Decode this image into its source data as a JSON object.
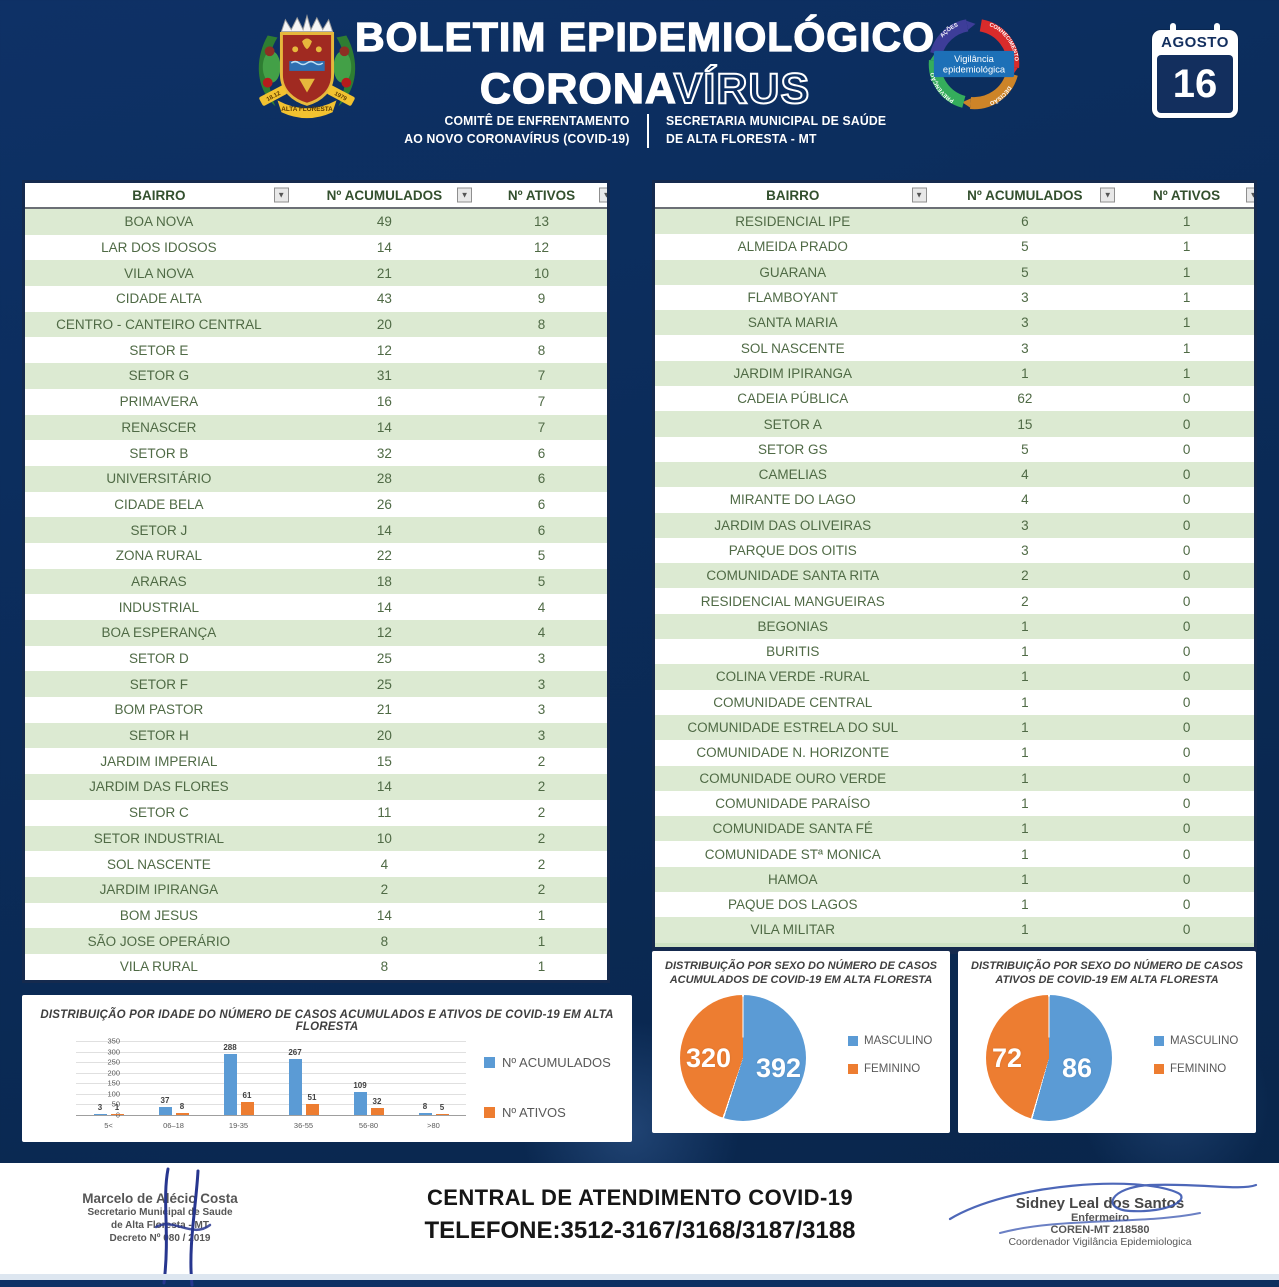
{
  "header": {
    "title_line1": "BOLETIM EPIDEMIOLÓGICO",
    "title_line2_solid": "CORONA",
    "title_line2_outline": "VÍRUS",
    "subtitle_left_line1": "COMITÊ DE ENFRENTAMENTO",
    "subtitle_left_line2": "AO NOVO CORONAVÍRUS (COVID-19)",
    "subtitle_right_line1": "SECRETARIA MUNICIPAL DE SAÚDE",
    "subtitle_right_line2": "DE ALTA FLORESTA - MT",
    "crest": {
      "ribbon_text": "ALTA FLORESTA",
      "year_left": "18.12",
      "year_right": "1979"
    },
    "vigilancia": {
      "center_line1": "Vigilância",
      "center_line2": "epidemiológica",
      "labels": [
        "CONHECIMENTO",
        "DECISÃO",
        "PREVENÇÃO",
        "AÇÕES"
      ]
    },
    "calendar": {
      "month": "AGOSTO",
      "day": "16"
    }
  },
  "tables": {
    "columns": [
      "BAIRRO",
      "Nº ACUMULADOS",
      "Nº ATIVOS"
    ],
    "left": {
      "rows": [
        [
          "BOA NOVA",
          49,
          13
        ],
        [
          "LAR DOS IDOSOS",
          14,
          12
        ],
        [
          "VILA NOVA",
          21,
          10
        ],
        [
          "CIDADE ALTA",
          43,
          9
        ],
        [
          "CENTRO - CANTEIRO CENTRAL",
          20,
          8
        ],
        [
          "SETOR E",
          12,
          8
        ],
        [
          "SETOR G",
          31,
          7
        ],
        [
          "PRIMAVERA",
          16,
          7
        ],
        [
          "RENASCER",
          14,
          7
        ],
        [
          "SETOR B",
          32,
          6
        ],
        [
          "UNIVERSITÁRIO",
          28,
          6
        ],
        [
          "CIDADE BELA",
          26,
          6
        ],
        [
          "SETOR J",
          14,
          6
        ],
        [
          "ZONA RURAL",
          22,
          5
        ],
        [
          "ARARAS",
          18,
          5
        ],
        [
          "INDUSTRIAL",
          14,
          4
        ],
        [
          "BOA ESPERANÇA",
          12,
          4
        ],
        [
          "SETOR D",
          25,
          3
        ],
        [
          "SETOR F",
          25,
          3
        ],
        [
          "BOM PASTOR",
          21,
          3
        ],
        [
          "SETOR H",
          20,
          3
        ],
        [
          "JARDIM IMPERIAL",
          15,
          2
        ],
        [
          "JARDIM DAS FLORES",
          14,
          2
        ],
        [
          "SETOR C",
          11,
          2
        ],
        [
          "SETOR INDUSTRIAL",
          10,
          2
        ],
        [
          "SOL NASCENTE",
          4,
          2
        ],
        [
          "JARDIM IPIRANGA",
          2,
          2
        ],
        [
          "BOM JESUS",
          14,
          1
        ],
        [
          "SÃO JOSE OPERÁRIO",
          8,
          1
        ],
        [
          "VILA RURAL",
          8,
          1
        ]
      ]
    },
    "right": {
      "rows": [
        [
          "RESIDENCIAL IPE",
          6,
          1
        ],
        [
          "ALMEIDA PRADO",
          5,
          1
        ],
        [
          "GUARANA",
          5,
          1
        ],
        [
          "FLAMBOYANT",
          3,
          1
        ],
        [
          "SANTA MARIA",
          3,
          1
        ],
        [
          "SOL NASCENTE",
          3,
          1
        ],
        [
          "JARDIM IPIRANGA",
          1,
          1
        ],
        [
          "CADEIA PÚBLICA",
          62,
          0
        ],
        [
          "SETOR A",
          15,
          0
        ],
        [
          "SETOR GS",
          5,
          0
        ],
        [
          "CAMELIAS",
          4,
          0
        ],
        [
          "MIRANTE DO LAGO",
          4,
          0
        ],
        [
          "JARDIM DAS OLIVEIRAS",
          3,
          0
        ],
        [
          "PARQUE DOS OITIS",
          3,
          0
        ],
        [
          "COMUNIDADE SANTA RITA",
          2,
          0
        ],
        [
          "RESIDENCIAL MANGUEIRAS",
          2,
          0
        ],
        [
          "BEGONIAS",
          1,
          0
        ],
        [
          "BURITIS",
          1,
          0
        ],
        [
          "COLINA VERDE -RURAL",
          1,
          0
        ],
        [
          "COMUNIDADE CENTRAL",
          1,
          0
        ],
        [
          "COMUNIDADE ESTRELA DO SUL",
          1,
          0
        ],
        [
          "COMUNIDADE N. HORIZONTE",
          1,
          0
        ],
        [
          "COMUNIDADE OURO VERDE",
          1,
          0
        ],
        [
          "COMUNIDADE PARAÍSO",
          1,
          0
        ],
        [
          "COMUNIDADE SANTA FÉ",
          1,
          0
        ],
        [
          "COMUNIDADE STª MONICA",
          1,
          0
        ],
        [
          "HAMOA",
          1,
          0
        ],
        [
          "PAQUE DOS LAGOS",
          1,
          0
        ],
        [
          "VILA MILITAR",
          1,
          0
        ]
      ]
    }
  },
  "chart_data": [
    {
      "type": "bar",
      "title": "DISTRIBUIÇÃO POR IDADE DO NÚMERO DE CASOS ACUMULADOS E ATIVOS DE COVID-19 EM ALTA FLORESTA",
      "categories": [
        "5<",
        "06–18",
        "19-35",
        "36-55",
        "56-80",
        ">80"
      ],
      "series": [
        {
          "name": "Nº ACUMULADOS",
          "color": "#5b9bd5",
          "values": [
            3,
            37,
            288,
            267,
            109,
            8
          ]
        },
        {
          "name": "Nº ATIVOS",
          "color": "#ed7d31",
          "values": [
            1,
            8,
            61,
            51,
            32,
            5
          ]
        }
      ],
      "ylim": [
        0,
        350
      ],
      "ytick_step": 50,
      "grid": true,
      "legend_position": "right"
    },
    {
      "type": "pie",
      "title": "DISTRIBUIÇÃO POR SEXO DO NÚMERO DE CASOS ACUMULADOS DE COVID-19 EM ALTA FLORESTA",
      "title_line1": "DISTRIBUIÇÃO POR SEXO DO NÚMERO DE CASOS",
      "title_line2": "ACUMULADOS DE COVID-19 EM ALTA FLORESTA",
      "labels": [
        "MASCULINO",
        "FEMININO"
      ],
      "values": [
        392,
        320
      ],
      "colors": [
        "#5b9bd5",
        "#ed7d31"
      ],
      "legend_position": "right"
    },
    {
      "type": "pie",
      "title": "DISTRIBUIÇÃO POR SEXO DO NÚMERO DE CASOS ATIVOS DE COVID-19 EM ALTA FLORESTA",
      "title_line1": "DISTRIBUIÇÃO POR SEXO DO NÚMERO DE CASOS",
      "title_line2": "ATIVOS DE COVID-19 EM ALTA FLORESTA",
      "labels": [
        "MASCULINO",
        "FEMININO"
      ],
      "values": [
        86,
        72
      ],
      "colors": [
        "#5b9bd5",
        "#ed7d31"
      ],
      "legend_position": "right"
    }
  ],
  "footer": {
    "left_signature": {
      "line1": "Marcelo de Alécio Costa",
      "line2": "Secretario Municipal de Saude",
      "line3": "de Alta Floresta - MT",
      "line4": "Decreto Nº 080 / 2019"
    },
    "center": {
      "line1": "CENTRAL  DE ATENDIMENTO COVID-19",
      "line2": "TELEFONE:3512-3167/3168/3187/3188"
    },
    "right_signature": {
      "line1": "Sidney Leal dos Santos",
      "line2": "Enfermeiro",
      "line3": "COREN-MT 218580",
      "line4": "Coordenador Vigilância Epidemiologica"
    }
  },
  "colors": {
    "navy_background": "#0b2c5a",
    "accent_blue": "#5b9bd5",
    "accent_orange": "#ed7d31",
    "table_row_green": "#dcead2",
    "table_text_green": "#4f6a45"
  }
}
